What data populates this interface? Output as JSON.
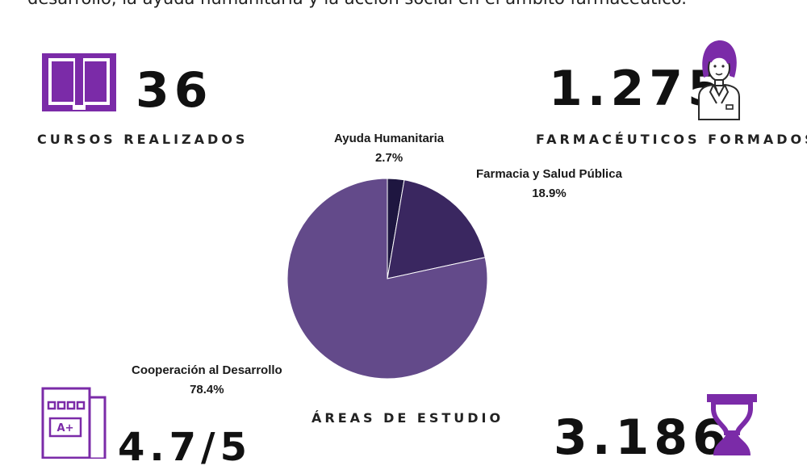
{
  "intro_text": "desarrollo, la ayuda humanitaria y la acción social en el ámbito farmacéutico.",
  "stats": {
    "courses": {
      "value": "36",
      "label": "CURSOS REALIZADOS",
      "icon": "book-icon"
    },
    "pharmacists": {
      "value": "1.275",
      "label": "FARMACÉUTICOS FORMADOS",
      "icon": "pharmacist-woman-icon"
    },
    "rating": {
      "value": "4.7/5",
      "icon": "grade-document-icon",
      "icon_text": "A+"
    },
    "hours": {
      "value": "3.186",
      "icon": "hourglass-icon"
    }
  },
  "chart_data": {
    "type": "pie",
    "title": "ÁREAS DE ESTUDIO",
    "slices": [
      {
        "label": "Ayuda Humanitaria",
        "value": 2.7,
        "display": "2.7%",
        "color": "#1e1640"
      },
      {
        "label": "Farmacia y Salud Pública",
        "value": 18.9,
        "display": "18.9%",
        "color": "#3a2760"
      },
      {
        "label": "Cooperación al Desarrollo",
        "value": 78.4,
        "display": "78.4%",
        "color": "#634a8a"
      }
    ]
  },
  "colors": {
    "accent_purple": "#7b2ba8",
    "icon_line": "#2a2a2a"
  }
}
